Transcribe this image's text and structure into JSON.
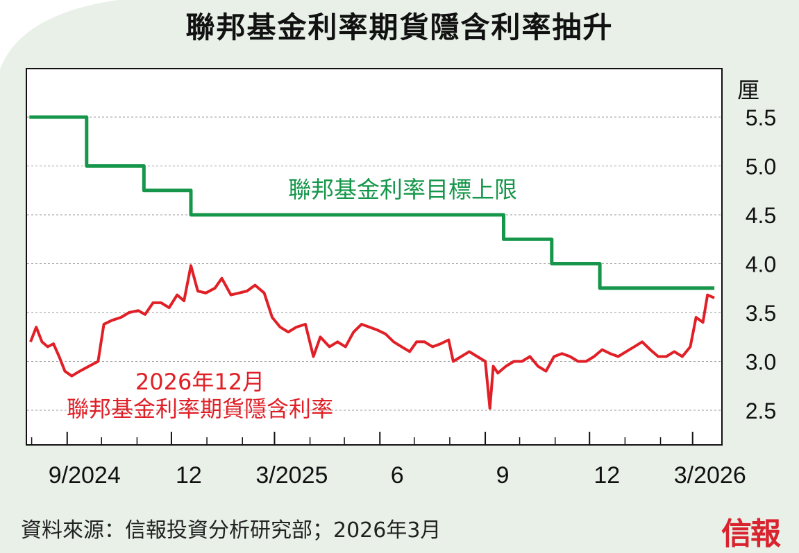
{
  "title": "聯邦基金利率期貨隱含利率抽升",
  "source": "資料來源：信報投資分析研究部；2026年3月",
  "logo": "信報",
  "chart_data": {
    "type": "line",
    "unit": "厘",
    "ylim": [
      2.0,
      6.0
    ],
    "yticks": [
      "2.5",
      "3.0",
      "3.5",
      "4.0",
      "4.5",
      "5.0",
      "5.5"
    ],
    "xtick_labels": [
      {
        "label": "9/2024",
        "date": "2024-09"
      },
      {
        "label": "12",
        "date": "2024-12"
      },
      {
        "label": "3/2025",
        "date": "2025-03"
      },
      {
        "label": "6",
        "date": "2025-06"
      },
      {
        "label": "9",
        "date": "2025-09"
      },
      {
        "label": "12",
        "date": "2025-12"
      },
      {
        "label": "3/2026",
        "date": "2026-03"
      }
    ],
    "grid": "horizontal dashed",
    "colors": {
      "target": "#15964a",
      "futures": "#e01f26"
    },
    "series": [
      {
        "name": "聯邦基金利率目標上限",
        "step": true,
        "points": [
          [
            "2024-07-30",
            5.5
          ],
          [
            "2024-09-18",
            5.0
          ],
          [
            "2024-11-07",
            4.75
          ],
          [
            "2024-12-18",
            4.5
          ],
          [
            "2025-09-17",
            4.25
          ],
          [
            "2025-10-29",
            4.0
          ],
          [
            "2025-12-10",
            3.75
          ],
          [
            "2026-03-20",
            3.75
          ]
        ]
      },
      {
        "name": "2026年12月\n聯邦基金利率期貨隱含利率",
        "points": [
          [
            "2024-07-31",
            3.2
          ],
          [
            "2024-08-05",
            3.35
          ],
          [
            "2024-08-10",
            3.2
          ],
          [
            "2024-08-15",
            3.15
          ],
          [
            "2024-08-20",
            3.18
          ],
          [
            "2024-08-25",
            3.05
          ],
          [
            "2024-08-30",
            2.9
          ],
          [
            "2024-09-05",
            2.85
          ],
          [
            "2024-09-12",
            2.9
          ],
          [
            "2024-09-20",
            2.95
          ],
          [
            "2024-09-28",
            3.0
          ],
          [
            "2024-10-03",
            3.38
          ],
          [
            "2024-10-10",
            3.42
          ],
          [
            "2024-10-18",
            3.45
          ],
          [
            "2024-10-25",
            3.5
          ],
          [
            "2024-11-02",
            3.52
          ],
          [
            "2024-11-08",
            3.48
          ],
          [
            "2024-11-15",
            3.6
          ],
          [
            "2024-11-22",
            3.6
          ],
          [
            "2024-11-29",
            3.55
          ],
          [
            "2024-12-06",
            3.68
          ],
          [
            "2024-12-12",
            3.62
          ],
          [
            "2024-12-18",
            3.98
          ],
          [
            "2024-12-24",
            3.72
          ],
          [
            "2024-12-31",
            3.7
          ],
          [
            "2025-01-08",
            3.75
          ],
          [
            "2025-01-14",
            3.85
          ],
          [
            "2025-01-22",
            3.68
          ],
          [
            "2025-01-29",
            3.7
          ],
          [
            "2025-02-05",
            3.72
          ],
          [
            "2025-02-12",
            3.78
          ],
          [
            "2025-02-20",
            3.7
          ],
          [
            "2025-02-27",
            3.45
          ],
          [
            "2025-03-06",
            3.35
          ],
          [
            "2025-03-13",
            3.3
          ],
          [
            "2025-03-20",
            3.35
          ],
          [
            "2025-03-28",
            3.38
          ],
          [
            "2025-04-04",
            3.05
          ],
          [
            "2025-04-10",
            3.25
          ],
          [
            "2025-04-18",
            3.15
          ],
          [
            "2025-04-25",
            3.2
          ],
          [
            "2025-05-02",
            3.15
          ],
          [
            "2025-05-09",
            3.3
          ],
          [
            "2025-05-16",
            3.38
          ],
          [
            "2025-05-23",
            3.35
          ],
          [
            "2025-05-30",
            3.32
          ],
          [
            "2025-06-06",
            3.28
          ],
          [
            "2025-06-13",
            3.2
          ],
          [
            "2025-06-20",
            3.15
          ],
          [
            "2025-06-27",
            3.1
          ],
          [
            "2025-07-03",
            3.2
          ],
          [
            "2025-07-10",
            3.2
          ],
          [
            "2025-07-17",
            3.15
          ],
          [
            "2025-07-24",
            3.18
          ],
          [
            "2025-07-31",
            3.22
          ],
          [
            "2025-08-04",
            3.0
          ],
          [
            "2025-08-11",
            3.05
          ],
          [
            "2025-08-18",
            3.1
          ],
          [
            "2025-08-25",
            3.05
          ],
          [
            "2025-09-01",
            3.0
          ],
          [
            "2025-09-05",
            2.52
          ],
          [
            "2025-09-08",
            2.95
          ],
          [
            "2025-09-12",
            2.88
          ],
          [
            "2025-09-19",
            2.95
          ],
          [
            "2025-09-26",
            3.0
          ],
          [
            "2025-10-03",
            3.0
          ],
          [
            "2025-10-10",
            3.05
          ],
          [
            "2025-10-17",
            2.95
          ],
          [
            "2025-10-24",
            2.9
          ],
          [
            "2025-10-31",
            3.05
          ],
          [
            "2025-11-07",
            3.08
          ],
          [
            "2025-11-14",
            3.05
          ],
          [
            "2025-11-21",
            3.0
          ],
          [
            "2025-11-28",
            3.0
          ],
          [
            "2025-12-05",
            3.05
          ],
          [
            "2025-12-12",
            3.12
          ],
          [
            "2025-12-19",
            3.08
          ],
          [
            "2025-12-26",
            3.05
          ],
          [
            "2026-01-02",
            3.1
          ],
          [
            "2026-01-09",
            3.15
          ],
          [
            "2026-01-16",
            3.2
          ],
          [
            "2026-01-23",
            3.12
          ],
          [
            "2026-01-30",
            3.05
          ],
          [
            "2026-02-06",
            3.05
          ],
          [
            "2026-02-13",
            3.1
          ],
          [
            "2026-02-20",
            3.05
          ],
          [
            "2026-02-27",
            3.15
          ],
          [
            "2026-03-04",
            3.45
          ],
          [
            "2026-03-10",
            3.4
          ],
          [
            "2026-03-14",
            3.68
          ],
          [
            "2026-03-20",
            3.65
          ]
        ]
      }
    ],
    "annotations": [
      {
        "text": "聯邦基金利率目標上限",
        "series": 0
      },
      {
        "text": "2026年12月",
        "series": 1
      },
      {
        "text": "聯邦基金利率期貨隱含利率",
        "series": 1
      }
    ]
  }
}
